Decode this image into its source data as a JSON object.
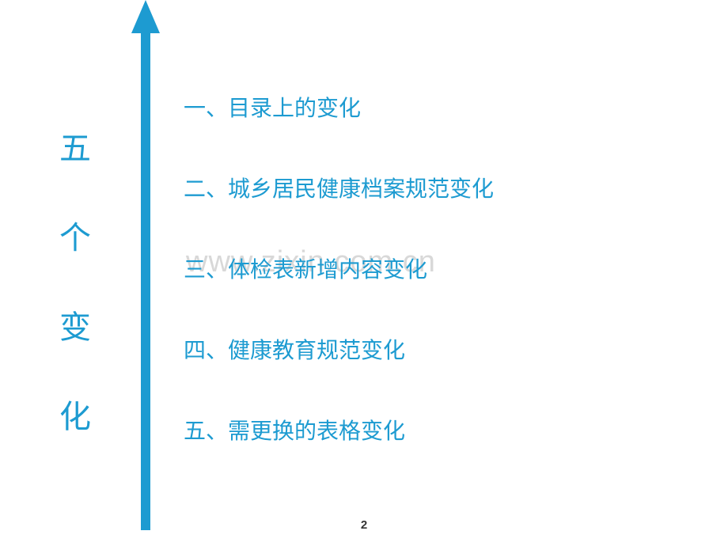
{
  "arrow": {
    "color": "#1d9bd1",
    "line_width": 12,
    "head_width": 36,
    "head_height": 42
  },
  "vertical_title": {
    "chars": [
      "五",
      "个",
      "变",
      "化"
    ],
    "color": "#1d9bd1",
    "fontsize": 40
  },
  "list_items": [
    "一、目录上的变化",
    "二、城乡居民健康档案规范变化",
    "三、体检表新增内容变化",
    "四、健康教育规范变化",
    "五、需更换的表格变化"
  ],
  "list_style": {
    "color": "#1d9bd1",
    "fontsize": 28
  },
  "watermark": {
    "text": "www.zixin.com.cn",
    "color": "#d8d8d8",
    "fontsize": 38
  },
  "page_number": "2",
  "background_color": "#ffffff"
}
